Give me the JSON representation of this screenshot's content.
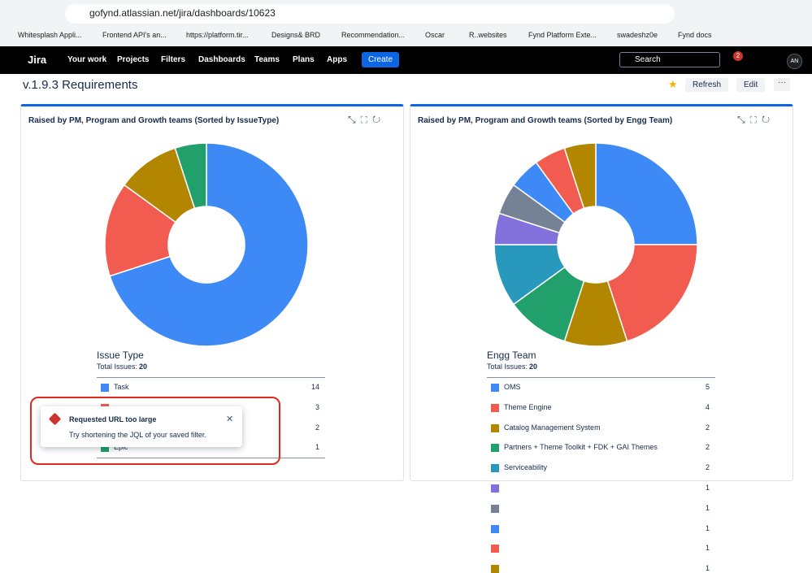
{
  "browser": {
    "url": "gofynd.atlassian.net/jira/dashboards/10623",
    "bookmarks": [
      "Whitesplash Appli...",
      "Frontend API's an...",
      "https://platform.tir...",
      "Designs& BRD",
      "Recommendation...",
      "Oscar",
      "R..websites",
      "Fynd Platform Exte...",
      "swadeshz0e",
      "Fynd docs"
    ]
  },
  "nav": {
    "logo": "Jira",
    "items": [
      "Your work",
      "Projects",
      "Filters",
      "Dashboards",
      "Teams",
      "Plans",
      "Apps"
    ],
    "create": "Create",
    "search": "Search",
    "notifications": "2",
    "avatar": "AN"
  },
  "dashboard": {
    "title": "v.1.9.3 Requirements",
    "refresh": "Refresh",
    "edit": "Edit"
  },
  "gadgets": [
    {
      "title": "Raised by PM, Program and Growth teams (Sorted by IssueType)",
      "chart": {
        "type": "pie",
        "legend_title": "Issue Type",
        "total_label": "Total Issues:",
        "total": 20,
        "categories": [
          "Task",
          null,
          null,
          "Epic"
        ],
        "values": [
          14,
          3,
          2,
          1
        ],
        "colors": [
          "#3d8af7",
          "#f15b50",
          "#b38600",
          "#22a06b"
        ]
      }
    },
    {
      "title": "Raised by PM, Program and Growth teams (Sorted by Engg Team)",
      "chart": {
        "type": "pie",
        "legend_title": "Engg Team",
        "total_label": "Total Issues:",
        "total": 20,
        "categories": [
          "OMS",
          "Theme Engine",
          "Catalog Management System",
          "Partners + Theme Toolkit + FDK + GAI Themes",
          "Serviceability",
          null,
          null,
          null,
          null,
          null
        ],
        "values": [
          5,
          4,
          2,
          2,
          2,
          1,
          1,
          1,
          1,
          1
        ],
        "colors": [
          "#3d8af7",
          "#f15b50",
          "#b38600",
          "#22a06b",
          "#2898bd",
          "#8270db",
          "#758195",
          "#3d8af7",
          "#f15b50",
          "#b38600"
        ]
      }
    }
  ],
  "toast": {
    "title": "Requested URL too large",
    "message": "Try shortening the JQL of your saved filter."
  }
}
